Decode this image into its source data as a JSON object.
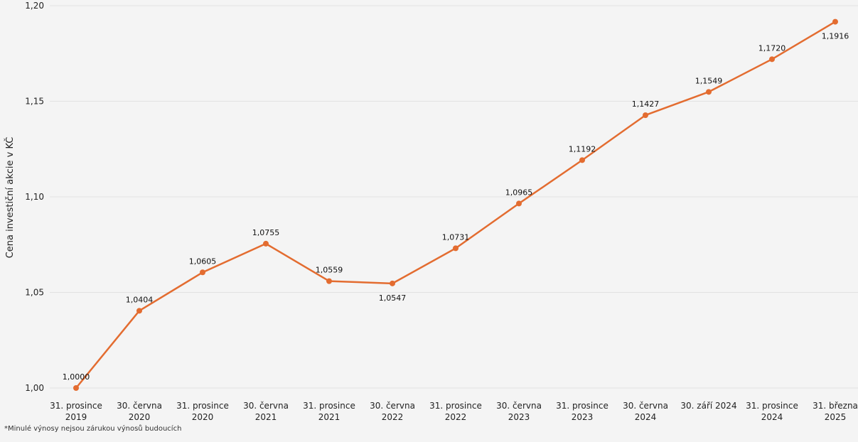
{
  "chart_data": {
    "type": "line",
    "title": "",
    "xlabel": "",
    "ylabel": "Cena investiční akcie v KČ",
    "categories": [
      [
        "31. prosince",
        "2019"
      ],
      [
        "30. června",
        "2020"
      ],
      [
        "31. prosince",
        "2020"
      ],
      [
        "30. června",
        "2021"
      ],
      [
        "31. prosince",
        "2021"
      ],
      [
        "30. června",
        "2022"
      ],
      [
        "31. prosince",
        "2022"
      ],
      [
        "30. června",
        "2023"
      ],
      [
        "31. prosince",
        "2023"
      ],
      [
        "30. června",
        "2024"
      ],
      [
        "30. září 2024"
      ],
      [
        "31. prosince",
        "2024"
      ],
      [
        "31. března",
        "2025"
      ]
    ],
    "values": [
      1.0,
      1.0404,
      1.0605,
      1.0755,
      1.0559,
      1.0547,
      1.0731,
      1.0965,
      1.1192,
      1.1427,
      1.1549,
      1.172,
      1.1916
    ],
    "data_labels": [
      "1,0000",
      "1,0404",
      "1,0605",
      "1,0755",
      "1,0559",
      "1,0547",
      "1,0731",
      "1,0965",
      "1,1192",
      "1,1427",
      "1,1549",
      "1,1720",
      "1,1916"
    ],
    "label_below": [
      false,
      false,
      false,
      false,
      false,
      true,
      false,
      false,
      false,
      false,
      false,
      false,
      true
    ],
    "ylim": [
      1.0,
      1.2
    ],
    "yticks": [
      1.0,
      1.05,
      1.1,
      1.15,
      1.2
    ],
    "ytick_labels": [
      "1,00",
      "1,05",
      "1,10",
      "1,15",
      "1,20"
    ],
    "grid": true,
    "line_color": "#e36c30",
    "grid_color": "#e2e2e2",
    "background": "#f4f4f4"
  },
  "footnote": "*Minulé výnosy nejsou zárukou výnosů budoucích"
}
